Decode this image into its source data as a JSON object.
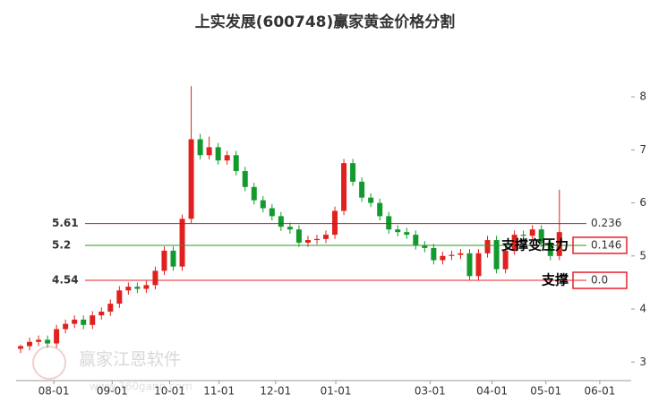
{
  "chart_data": {
    "type": "candlestick",
    "title": "上实发展(600748)赢家黄金价格分割",
    "watermark": [
      "赢家江恩软件",
      "www.360gann.com"
    ],
    "up_color": "#e0211f",
    "down_color": "#139a2e",
    "x": [
      0,
      1,
      2,
      3,
      4,
      5,
      6,
      7,
      8,
      9,
      10,
      11,
      12,
      13,
      14,
      15,
      16,
      17,
      18,
      19,
      20,
      21,
      22,
      23,
      24,
      25,
      26,
      27,
      28,
      29,
      30,
      31,
      32,
      33,
      34,
      35,
      36,
      37,
      38,
      39,
      40,
      41,
      42,
      43,
      44,
      45,
      46,
      47,
      48,
      49,
      50,
      51,
      52,
      53,
      54,
      55,
      56,
      57,
      58,
      59,
      60
    ],
    "open": [
      3.25,
      3.3,
      3.38,
      3.42,
      3.35,
      3.62,
      3.72,
      3.8,
      3.7,
      3.88,
      3.95,
      4.1,
      4.35,
      4.42,
      4.38,
      4.45,
      4.72,
      5.1,
      4.8,
      5.7,
      7.2,
      6.9,
      7.05,
      6.8,
      6.9,
      6.6,
      6.3,
      6.05,
      5.9,
      5.75,
      5.55,
      5.5,
      5.25,
      5.3,
      5.32,
      5.4,
      5.85,
      6.75,
      6.4,
      6.1,
      6.0,
      5.75,
      5.5,
      5.45,
      5.4,
      5.2,
      5.15,
      4.92,
      5.0,
      5.02,
      5.05,
      4.62,
      5.05,
      5.3,
      4.75,
      5.1,
      5.4,
      5.38,
      5.5,
      5.25,
      5.0
    ],
    "close": [
      3.3,
      3.38,
      3.42,
      3.35,
      3.62,
      3.72,
      3.8,
      3.7,
      3.88,
      3.95,
      4.1,
      4.35,
      4.42,
      4.38,
      4.45,
      4.72,
      5.1,
      4.8,
      5.7,
      7.2,
      6.9,
      7.05,
      6.8,
      6.9,
      6.6,
      6.3,
      6.05,
      5.9,
      5.75,
      5.55,
      5.5,
      5.25,
      5.3,
      5.32,
      5.4,
      5.85,
      6.75,
      6.4,
      6.1,
      6.0,
      5.75,
      5.5,
      5.45,
      5.4,
      5.2,
      5.15,
      4.92,
      5.0,
      5.02,
      5.05,
      4.62,
      5.05,
      5.3,
      4.75,
      5.1,
      5.4,
      5.38,
      5.5,
      5.25,
      5.0,
      5.45
    ],
    "high": [
      3.33,
      3.46,
      3.5,
      3.5,
      3.7,
      3.8,
      3.88,
      3.88,
      3.96,
      4.03,
      4.18,
      4.43,
      4.5,
      4.5,
      4.53,
      4.8,
      5.18,
      5.18,
      5.78,
      8.2,
      7.3,
      7.25,
      7.13,
      6.98,
      6.98,
      6.68,
      6.38,
      6.13,
      5.98,
      5.83,
      5.63,
      5.58,
      5.38,
      5.4,
      5.48,
      5.93,
      6.83,
      6.83,
      6.48,
      6.18,
      6.08,
      5.83,
      5.58,
      5.53,
      5.48,
      5.28,
      5.23,
      5.08,
      5.1,
      5.13,
      5.13,
      5.13,
      5.38,
      5.38,
      5.18,
      5.48,
      5.48,
      5.58,
      5.58,
      5.33,
      6.25
    ],
    "low": [
      3.17,
      3.22,
      3.3,
      3.27,
      3.27,
      3.54,
      3.64,
      3.62,
      3.62,
      3.8,
      3.87,
      4.02,
      4.27,
      4.3,
      4.3,
      4.37,
      4.64,
      4.72,
      4.72,
      5.62,
      6.82,
      6.82,
      6.72,
      6.72,
      6.52,
      6.22,
      5.97,
      5.82,
      5.67,
      5.47,
      5.42,
      5.17,
      5.17,
      5.22,
      5.24,
      5.32,
      5.77,
      6.32,
      6.02,
      5.92,
      5.67,
      5.42,
      5.37,
      5.32,
      5.12,
      5.07,
      4.84,
      4.84,
      4.92,
      4.94,
      4.54,
      4.54,
      4.97,
      4.67,
      4.67,
      5.02,
      5.3,
      5.3,
      5.17,
      4.92,
      4.92
    ],
    "xlim": [
      -0.5,
      67.5
    ],
    "xticks": [
      {
        "value": 3.7,
        "label": "08-01"
      },
      {
        "value": 10.2,
        "label": "09-01"
      },
      {
        "value": 16.6,
        "label": "10-01"
      },
      {
        "value": 22.1,
        "label": "11-01"
      },
      {
        "value": 28.4,
        "label": "12-01"
      },
      {
        "value": 35.1,
        "label": "01-01"
      },
      {
        "value": 45.6,
        "label": "03-01"
      },
      {
        "value": 52.5,
        "label": "04-01"
      },
      {
        "value": 58.5,
        "label": "05-01"
      },
      {
        "value": 64.5,
        "label": "06-01"
      }
    ],
    "ylim": [
      2.65,
      9.15
    ],
    "yticks": [
      3,
      4,
      5,
      6,
      7,
      8
    ],
    "levels": [
      {
        "price": 5.61,
        "ratio": 0.236,
        "color": "#b0202a",
        "boxed": false
      },
      {
        "price": 5.2,
        "ratio": 0.146,
        "color": "#2a9a2a",
        "boxed": true,
        "note": "支撑变压力"
      },
      {
        "price": 4.54,
        "ratio": {
          "value": 0,
          "label": "0.0"
        },
        "color": "#e8202a",
        "boxed": true,
        "note": "支撑"
      }
    ]
  }
}
